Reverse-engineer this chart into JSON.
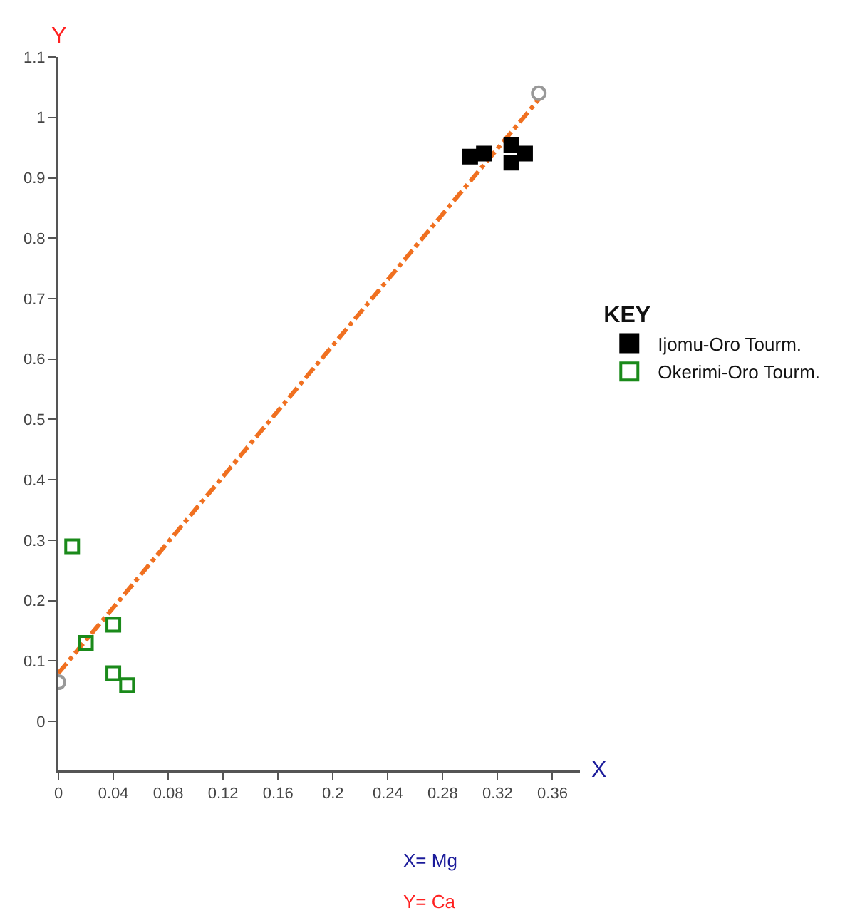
{
  "chart_data": {
    "type": "scatter",
    "xlabel": "X",
    "ylabel": "Y",
    "legend_title": "KEY",
    "xlim": [
      0,
      0.38
    ],
    "ylim": [
      -0.08,
      1.1
    ],
    "xticks": [
      0,
      0.04,
      0.08,
      0.12,
      0.16,
      0.2,
      0.24,
      0.28,
      0.32,
      0.36
    ],
    "yticks": [
      0,
      0.1,
      0.2,
      0.3,
      0.4,
      0.5,
      0.6,
      0.7,
      0.8,
      0.9,
      1,
      1.1
    ],
    "legend": "right",
    "series": [
      {
        "type": "line",
        "marker": "none",
        "line_style": "dashdot",
        "color": "#f07020",
        "x": [
          0,
          0.35
        ],
        "values": [
          0.08,
          1.03
        ]
      },
      {
        "marker": "circle",
        "color": "#999999",
        "x": [
          0,
          0.35
        ],
        "values": [
          0.065,
          1.04
        ]
      },
      {
        "name": "Ijomu-Oro Tourm.",
        "marker": "square",
        "color": "#000000",
        "x": [
          0.3,
          0.31,
          0.33,
          0.33,
          0.34
        ],
        "values": [
          0.935,
          0.94,
          0.955,
          0.925,
          0.94
        ]
      },
      {
        "name": "Okerimi-Oro Tourm.",
        "marker": "square",
        "color": "#1a8a1a",
        "x": [
          0.01,
          0.02,
          0.04,
          0.04,
          0.05
        ],
        "values": [
          0.29,
          0.13,
          0.16,
          0.08,
          0.06
        ]
      }
    ],
    "annotations": [
      "X= Mg",
      "Y= Ca"
    ]
  }
}
